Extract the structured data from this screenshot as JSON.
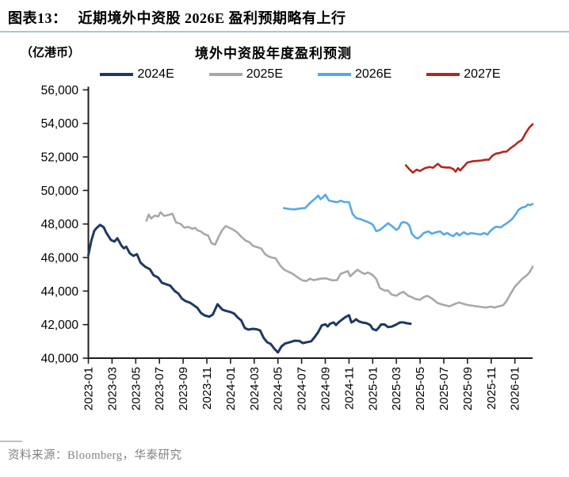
{
  "header": {
    "figure_label": "图表13：",
    "title": "近期境外中资股 2026E 盈利预期略有上行"
  },
  "footer": {
    "source": "资料来源：Bloomberg，华泰研究"
  },
  "chart_data": {
    "type": "line",
    "title": "境外中资股年度盈利预测",
    "unit_label": "（亿港币）",
    "ylim": [
      40000,
      56000
    ],
    "ytick_step": 2000,
    "ytick_labels": [
      "40,000",
      "42,000",
      "44,000",
      "46,000",
      "48,000",
      "50,000",
      "52,000",
      "54,000",
      "56,000"
    ],
    "grid": false,
    "legend_position": "top",
    "x_axis": {
      "start_month": "2023-01",
      "months_per_tick": 2,
      "axis_end_month_offset": 37.5,
      "tick_labels": [
        "2023-01",
        "2023-03",
        "2023-05",
        "2023-07",
        "2023-09",
        "2023-11",
        "2024-01",
        "2024-03",
        "2024-05",
        "2024-07",
        "2024-09",
        "2024-11",
        "2025-01",
        "2025-03",
        "2025-05",
        "2025-07",
        "2025-09",
        "2025-11",
        "2026-01"
      ]
    },
    "series": [
      {
        "name": "2024E",
        "color": "#1F3864",
        "points": [
          [
            0,
            46150
          ],
          [
            0.25,
            47000
          ],
          [
            0.5,
            47600
          ],
          [
            0.75,
            47800
          ],
          [
            1,
            47950
          ],
          [
            1.3,
            47800
          ],
          [
            1.5,
            47500
          ],
          [
            1.9,
            47050
          ],
          [
            2.2,
            46950
          ],
          [
            2.45,
            47150
          ],
          [
            2.8,
            46700
          ],
          [
            3,
            46550
          ],
          [
            3.2,
            46650
          ],
          [
            3.5,
            46250
          ],
          [
            3.8,
            46100
          ],
          [
            4.1,
            46200
          ],
          [
            4.4,
            45700
          ],
          [
            4.8,
            45450
          ],
          [
            5.2,
            45300
          ],
          [
            5.5,
            44950
          ],
          [
            5.9,
            44800
          ],
          [
            6.2,
            44500
          ],
          [
            6.6,
            44400
          ],
          [
            6.9,
            44330
          ],
          [
            7.3,
            44000
          ],
          [
            7.6,
            43850
          ],
          [
            7.9,
            43550
          ],
          [
            8.2,
            43400
          ],
          [
            8.6,
            43300
          ],
          [
            8.9,
            43150
          ],
          [
            9.2,
            43000
          ],
          [
            9.5,
            42700
          ],
          [
            9.8,
            42550
          ],
          [
            10.2,
            42470
          ],
          [
            10.5,
            42600
          ],
          [
            10.9,
            43220
          ],
          [
            11.3,
            42900
          ],
          [
            11.6,
            42820
          ],
          [
            12,
            42750
          ],
          [
            12.3,
            42660
          ],
          [
            12.6,
            42430
          ],
          [
            12.9,
            42250
          ],
          [
            13.2,
            41800
          ],
          [
            13.5,
            41700
          ],
          [
            13.9,
            41750
          ],
          [
            14.2,
            41720
          ],
          [
            14.5,
            41650
          ],
          [
            14.8,
            41200
          ],
          [
            15.1,
            40950
          ],
          [
            15.4,
            40840
          ],
          [
            15.7,
            40560
          ],
          [
            16,
            40340
          ],
          [
            16.3,
            40700
          ],
          [
            16.6,
            40870
          ],
          [
            17,
            40950
          ],
          [
            17.4,
            41040
          ],
          [
            17.8,
            41030
          ],
          [
            18.1,
            40900
          ],
          [
            18.5,
            40960
          ],
          [
            18.8,
            41000
          ],
          [
            19.1,
            41250
          ],
          [
            19.4,
            41550
          ],
          [
            19.7,
            41950
          ],
          [
            20,
            42020
          ],
          [
            20.2,
            41890
          ],
          [
            20.4,
            42050
          ],
          [
            20.7,
            42130
          ],
          [
            20.9,
            41970
          ],
          [
            21.1,
            42120
          ],
          [
            21.4,
            42290
          ],
          [
            21.7,
            42450
          ],
          [
            22,
            42560
          ],
          [
            22.2,
            42130
          ],
          [
            22.4,
            42200
          ],
          [
            22.6,
            42320
          ],
          [
            22.8,
            42200
          ],
          [
            23.1,
            42130
          ],
          [
            23.5,
            42080
          ],
          [
            23.8,
            41970
          ],
          [
            24,
            41740
          ],
          [
            24.3,
            41660
          ],
          [
            24.5,
            41810
          ],
          [
            24.7,
            42010
          ],
          [
            25,
            42010
          ],
          [
            25.3,
            41850
          ],
          [
            25.6,
            41880
          ],
          [
            26,
            42010
          ],
          [
            26.3,
            42130
          ],
          [
            26.6,
            42130
          ],
          [
            26.9,
            42080
          ],
          [
            27.2,
            42050
          ]
        ]
      },
      {
        "name": "2025E",
        "color": "#A8A8A8",
        "points": [
          [
            4.9,
            48200
          ],
          [
            5.1,
            48560
          ],
          [
            5.3,
            48330
          ],
          [
            5.6,
            48500
          ],
          [
            5.9,
            48450
          ],
          [
            6.1,
            48700
          ],
          [
            6.4,
            48480
          ],
          [
            6.8,
            48550
          ],
          [
            7.1,
            48610
          ],
          [
            7.4,
            48100
          ],
          [
            7.8,
            48000
          ],
          [
            8.1,
            47780
          ],
          [
            8.4,
            47830
          ],
          [
            8.8,
            47710
          ],
          [
            9,
            47780
          ],
          [
            9.2,
            47630
          ],
          [
            9.5,
            47550
          ],
          [
            9.8,
            47390
          ],
          [
            10.1,
            47320
          ],
          [
            10.4,
            46850
          ],
          [
            10.7,
            46770
          ],
          [
            11,
            47240
          ],
          [
            11.3,
            47630
          ],
          [
            11.6,
            47880
          ],
          [
            11.9,
            47780
          ],
          [
            12.3,
            47630
          ],
          [
            12.6,
            47470
          ],
          [
            12.9,
            47240
          ],
          [
            13.3,
            47000
          ],
          [
            13.6,
            46920
          ],
          [
            13.9,
            46690
          ],
          [
            14.3,
            46610
          ],
          [
            14.6,
            46530
          ],
          [
            14.9,
            46210
          ],
          [
            15.2,
            46070
          ],
          [
            15.5,
            45990
          ],
          [
            15.8,
            45960
          ],
          [
            16.2,
            45520
          ],
          [
            16.5,
            45290
          ],
          [
            16.8,
            45180
          ],
          [
            17.2,
            45050
          ],
          [
            17.5,
            44900
          ],
          [
            17.8,
            44750
          ],
          [
            18.1,
            44630
          ],
          [
            18.4,
            44600
          ],
          [
            18.7,
            44740
          ],
          [
            19,
            44650
          ],
          [
            19.3,
            44690
          ],
          [
            19.6,
            44740
          ],
          [
            20,
            44760
          ],
          [
            20.3,
            44700
          ],
          [
            20.6,
            44640
          ],
          [
            21,
            44660
          ],
          [
            21.3,
            45030
          ],
          [
            21.6,
            45110
          ],
          [
            21.9,
            45190
          ],
          [
            22.1,
            44880
          ],
          [
            22.4,
            45080
          ],
          [
            22.7,
            45270
          ],
          [
            23,
            45140
          ],
          [
            23.3,
            45020
          ],
          [
            23.6,
            45110
          ],
          [
            24,
            44950
          ],
          [
            24.3,
            44720
          ],
          [
            24.6,
            44180
          ],
          [
            25,
            44030
          ],
          [
            25.3,
            44030
          ],
          [
            25.6,
            43790
          ],
          [
            26,
            43720
          ],
          [
            26.3,
            43870
          ],
          [
            26.6,
            43950
          ],
          [
            27,
            43720
          ],
          [
            27.3,
            43640
          ],
          [
            27.6,
            43530
          ],
          [
            28,
            43480
          ],
          [
            28.3,
            43640
          ],
          [
            28.6,
            43720
          ],
          [
            29,
            43560
          ],
          [
            29.5,
            43280
          ],
          [
            30,
            43170
          ],
          [
            30.5,
            43090
          ],
          [
            31,
            43250
          ],
          [
            31.3,
            43320
          ],
          [
            31.6,
            43250
          ],
          [
            32,
            43170
          ],
          [
            32.5,
            43120
          ],
          [
            33,
            43070
          ],
          [
            33.5,
            43020
          ],
          [
            34,
            43070
          ],
          [
            34.3,
            43020
          ],
          [
            34.6,
            43090
          ],
          [
            35,
            43150
          ],
          [
            35.3,
            43400
          ],
          [
            35.6,
            43790
          ],
          [
            36,
            44260
          ],
          [
            36.3,
            44490
          ],
          [
            36.6,
            44720
          ],
          [
            36.9,
            44880
          ],
          [
            37.1,
            45000
          ],
          [
            37.3,
            45190
          ],
          [
            37.5,
            45450
          ]
        ]
      },
      {
        "name": "2026E",
        "color": "#55A9E8",
        "points": [
          [
            16.5,
            48950
          ],
          [
            16.9,
            48900
          ],
          [
            17.4,
            48870
          ],
          [
            17.8,
            48920
          ],
          [
            18.3,
            48950
          ],
          [
            18.7,
            49250
          ],
          [
            19.2,
            49550
          ],
          [
            19.4,
            49700
          ],
          [
            19.6,
            49480
          ],
          [
            19.8,
            49600
          ],
          [
            20,
            49750
          ],
          [
            20.3,
            49400
          ],
          [
            20.6,
            49350
          ],
          [
            21,
            49300
          ],
          [
            21.3,
            49390
          ],
          [
            21.6,
            49310
          ],
          [
            22,
            49310
          ],
          [
            22.3,
            48600
          ],
          [
            22.6,
            48360
          ],
          [
            23,
            48280
          ],
          [
            23.3,
            48200
          ],
          [
            23.6,
            48120
          ],
          [
            24,
            47970
          ],
          [
            24.3,
            47570
          ],
          [
            24.6,
            47650
          ],
          [
            24.9,
            47810
          ],
          [
            25.3,
            48050
          ],
          [
            25.6,
            47890
          ],
          [
            26,
            47650
          ],
          [
            26.2,
            47750
          ],
          [
            26.4,
            48050
          ],
          [
            26.6,
            48120
          ],
          [
            26.9,
            48050
          ],
          [
            27.1,
            47900
          ],
          [
            27.3,
            47420
          ],
          [
            27.6,
            47200
          ],
          [
            27.8,
            47130
          ],
          [
            28.1,
            47300
          ],
          [
            28.3,
            47460
          ],
          [
            28.7,
            47560
          ],
          [
            29,
            47420
          ],
          [
            29.3,
            47500
          ],
          [
            29.7,
            47560
          ],
          [
            30,
            47370
          ],
          [
            30.3,
            47460
          ],
          [
            30.6,
            47330
          ],
          [
            30.8,
            47270
          ],
          [
            31.1,
            47460
          ],
          [
            31.3,
            47320
          ],
          [
            31.7,
            47510
          ],
          [
            32,
            47380
          ],
          [
            32.3,
            47460
          ],
          [
            32.7,
            47420
          ],
          [
            33.1,
            47370
          ],
          [
            33.4,
            47460
          ],
          [
            33.7,
            47370
          ],
          [
            33.9,
            47560
          ],
          [
            34.2,
            47750
          ],
          [
            34.4,
            47840
          ],
          [
            34.8,
            47800
          ],
          [
            35.2,
            47990
          ],
          [
            35.5,
            48130
          ],
          [
            35.8,
            48320
          ],
          [
            36,
            48510
          ],
          [
            36.3,
            48840
          ],
          [
            36.6,
            48980
          ],
          [
            36.9,
            49030
          ],
          [
            37.1,
            49170
          ],
          [
            37.3,
            49120
          ],
          [
            37.5,
            49200
          ]
        ]
      },
      {
        "name": "2027E",
        "color": "#B3281E",
        "points": [
          [
            26.8,
            51500
          ],
          [
            27.1,
            51260
          ],
          [
            27.4,
            51060
          ],
          [
            27.7,
            51240
          ],
          [
            28,
            51160
          ],
          [
            28.4,
            51330
          ],
          [
            28.8,
            51400
          ],
          [
            29.1,
            51350
          ],
          [
            29.5,
            51590
          ],
          [
            29.8,
            51400
          ],
          [
            30.2,
            51370
          ],
          [
            30.5,
            51370
          ],
          [
            30.8,
            51280
          ],
          [
            31,
            51120
          ],
          [
            31.2,
            51330
          ],
          [
            31.4,
            51200
          ],
          [
            31.6,
            51360
          ],
          [
            32,
            51670
          ],
          [
            32.4,
            51740
          ],
          [
            32.8,
            51760
          ],
          [
            33.2,
            51790
          ],
          [
            33.5,
            51830
          ],
          [
            33.8,
            51830
          ],
          [
            34.1,
            52070
          ],
          [
            34.4,
            52200
          ],
          [
            34.7,
            52230
          ],
          [
            35,
            52310
          ],
          [
            35.3,
            52320
          ],
          [
            35.6,
            52510
          ],
          [
            36,
            52700
          ],
          [
            36.3,
            52890
          ],
          [
            36.6,
            53020
          ],
          [
            36.9,
            53410
          ],
          [
            37.2,
            53730
          ],
          [
            37.5,
            53950
          ]
        ]
      }
    ]
  }
}
